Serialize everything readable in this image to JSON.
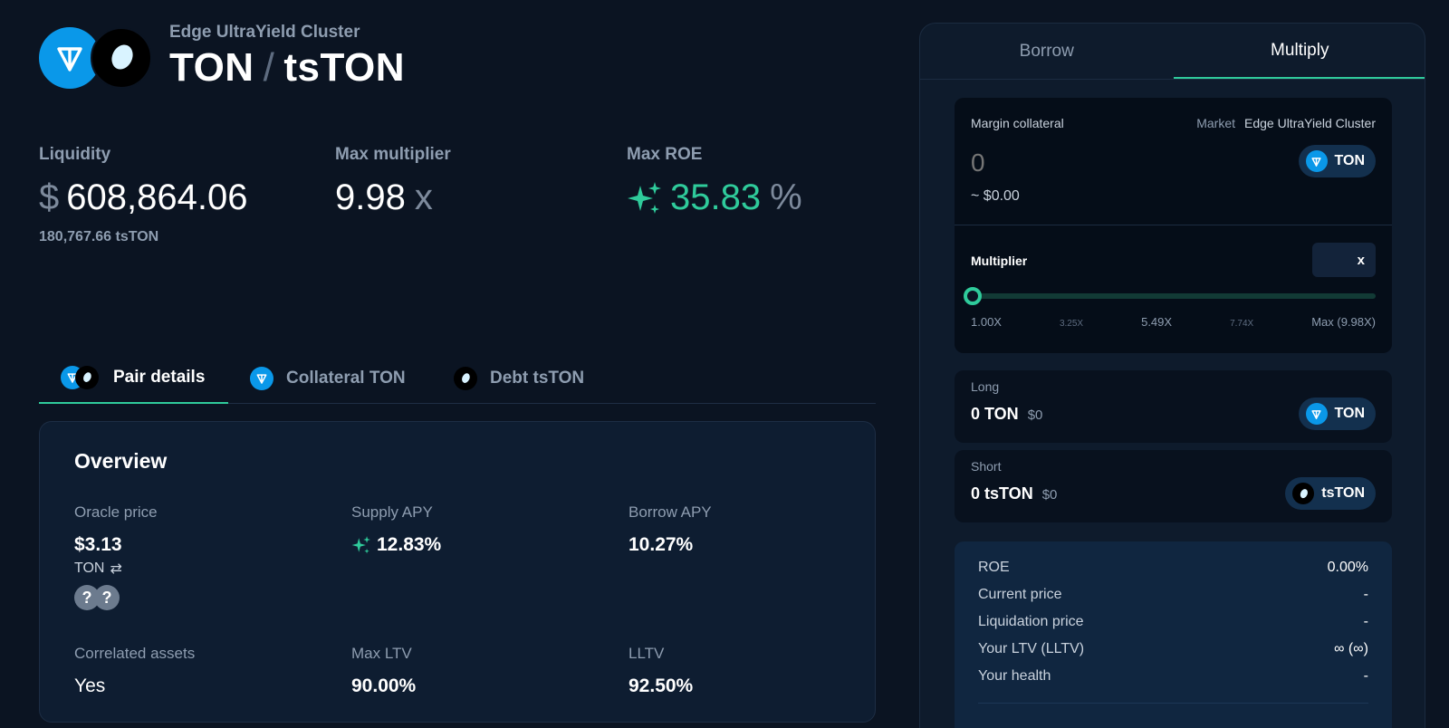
{
  "header": {
    "subtitle": "Edge UltraYield Cluster",
    "title_left": "TON",
    "title_sep": "/",
    "title_right": "tsTON"
  },
  "stats": {
    "liquidity": {
      "label": "Liquidity",
      "currency": "$",
      "value": "608,864.06",
      "sub": "180,767.66 tsTON"
    },
    "max_multiplier": {
      "label": "Max multiplier",
      "value": "9.98",
      "unit": "x"
    },
    "max_roe": {
      "label": "Max ROE",
      "value": "35.83",
      "unit": "%"
    }
  },
  "pair_tabs": [
    {
      "label": "Pair details",
      "icon": "pair-icon"
    },
    {
      "label": "Collateral TON",
      "icon": "ton-icon"
    },
    {
      "label": "Debt tsTON",
      "icon": "tston-icon"
    }
  ],
  "overview": {
    "title": "Overview",
    "oracle_price": {
      "label": "Oracle price",
      "value": "$3.13",
      "unit": "TON",
      "swap_icon": "⇄",
      "q1": "?",
      "q2": "?"
    },
    "supply_apy": {
      "label": "Supply APY",
      "value": "12.83%"
    },
    "borrow_apy": {
      "label": "Borrow APY",
      "value": "10.27%"
    },
    "correlated": {
      "label": "Correlated assets",
      "value": "Yes"
    },
    "max_ltv": {
      "label": "Max LTV",
      "value": "90.00%"
    },
    "lltv": {
      "label": "LLTV",
      "value": "92.50%"
    }
  },
  "panel": {
    "tabs": {
      "borrow": "Borrow",
      "multiply": "Multiply"
    },
    "margin": {
      "label": "Margin collateral",
      "market_label": "Market",
      "market_value": "Edge UltraYield Cluster",
      "input_placeholder": "0",
      "usd": "~ $0.00",
      "token": "TON"
    },
    "multiplier": {
      "label": "Multiplier",
      "suffix": "x",
      "value": 1.0,
      "min": 1.0,
      "max": 9.98,
      "ticks": [
        "1.00X",
        "3.25X",
        "5.49X",
        "7.74X",
        "Max (9.98X)"
      ]
    },
    "long": {
      "label": "Long",
      "amount": "0 TON",
      "usd": "$0",
      "token": "TON"
    },
    "short": {
      "label": "Short",
      "amount": "0 tsTON",
      "usd": "$0",
      "token": "tsTON"
    },
    "summary": [
      {
        "label": "ROE",
        "value": "0.00%"
      },
      {
        "label": "Current price",
        "value": "-"
      },
      {
        "label": "Liquidation price",
        "value": "-"
      },
      {
        "label": "Your LTV (LLTV)",
        "value": "∞ (∞)"
      },
      {
        "label": "Your health",
        "value": "-"
      }
    ]
  },
  "colors": {
    "accent": "#2fcb9b",
    "ton": "#0a98e9",
    "background": "#0b1422"
  }
}
